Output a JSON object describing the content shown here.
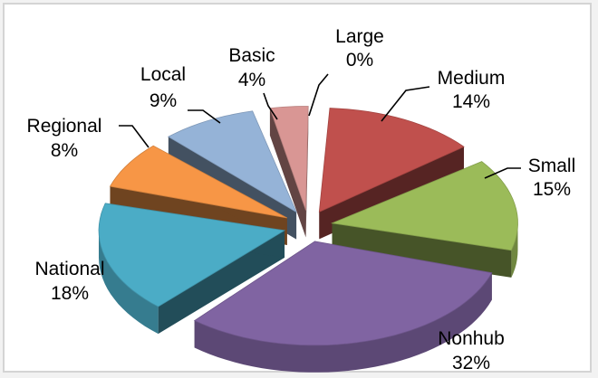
{
  "chart_data": {
    "type": "pie",
    "title": "",
    "slices": [
      {
        "name": "Large",
        "value": 0,
        "label": "0%",
        "color": "#8064a2"
      },
      {
        "name": "Medium",
        "value": 14,
        "label": "14%",
        "color": "#c0504d"
      },
      {
        "name": "Small",
        "value": 15,
        "label": "15%",
        "color": "#9bbb59"
      },
      {
        "name": "Nonhub",
        "value": 32,
        "label": "32%",
        "color": "#8064a2"
      },
      {
        "name": "National",
        "value": 18,
        "label": "18%",
        "color": "#4bacc6"
      },
      {
        "name": "Regional",
        "value": 8,
        "label": "8%",
        "color": "#f79646"
      },
      {
        "name": "Local",
        "value": 9,
        "label": "9%",
        "color": "#95b3d7"
      },
      {
        "name": "Basic",
        "value": 4,
        "label": "4%",
        "color": "#d99694"
      }
    ],
    "exploded": true,
    "three_d": true,
    "legend": "none"
  }
}
